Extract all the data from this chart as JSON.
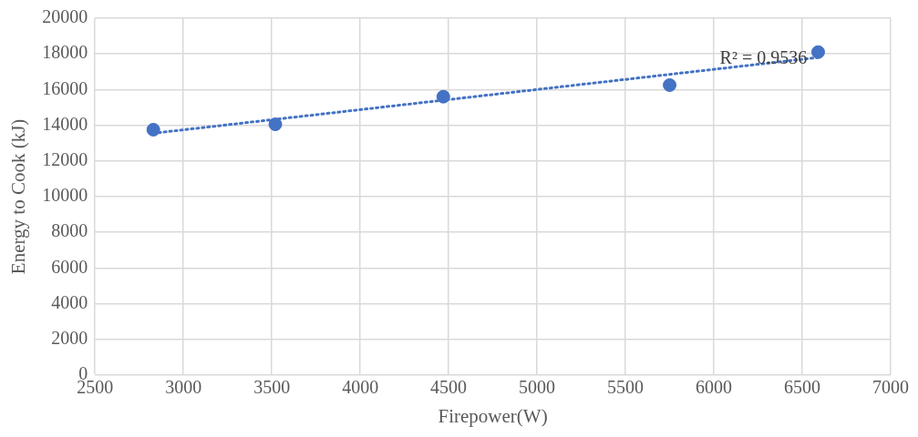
{
  "chart_data": {
    "type": "scatter",
    "xlabel": "Firepower(W)",
    "ylabel": "Energy to Cook (kJ)",
    "x": [
      2830,
      3520,
      4470,
      5750,
      6590
    ],
    "series": [
      {
        "type": "scatter",
        "color": "#4472c4",
        "values": [
          13750,
          14050,
          15600,
          16250,
          18100
        ],
        "marker": "circle"
      },
      {
        "type": "line",
        "color": "#4472c4",
        "x": [
          2830,
          6590
        ],
        "values": [
          13550,
          17800
        ],
        "line_style": "dotted",
        "marker": "none"
      }
    ],
    "annotations": [
      "R² = 0.9536"
    ],
    "xlim": [
      2500,
      7000
    ],
    "xticks": [
      2500,
      3000,
      3500,
      4000,
      4500,
      5000,
      5500,
      6000,
      6500,
      7000
    ],
    "ylim": [
      0,
      20000
    ],
    "yticks": [
      0,
      2000,
      4000,
      6000,
      8000,
      10000,
      12000,
      14000,
      16000,
      18000,
      20000
    ],
    "grid": true,
    "legend": false
  }
}
